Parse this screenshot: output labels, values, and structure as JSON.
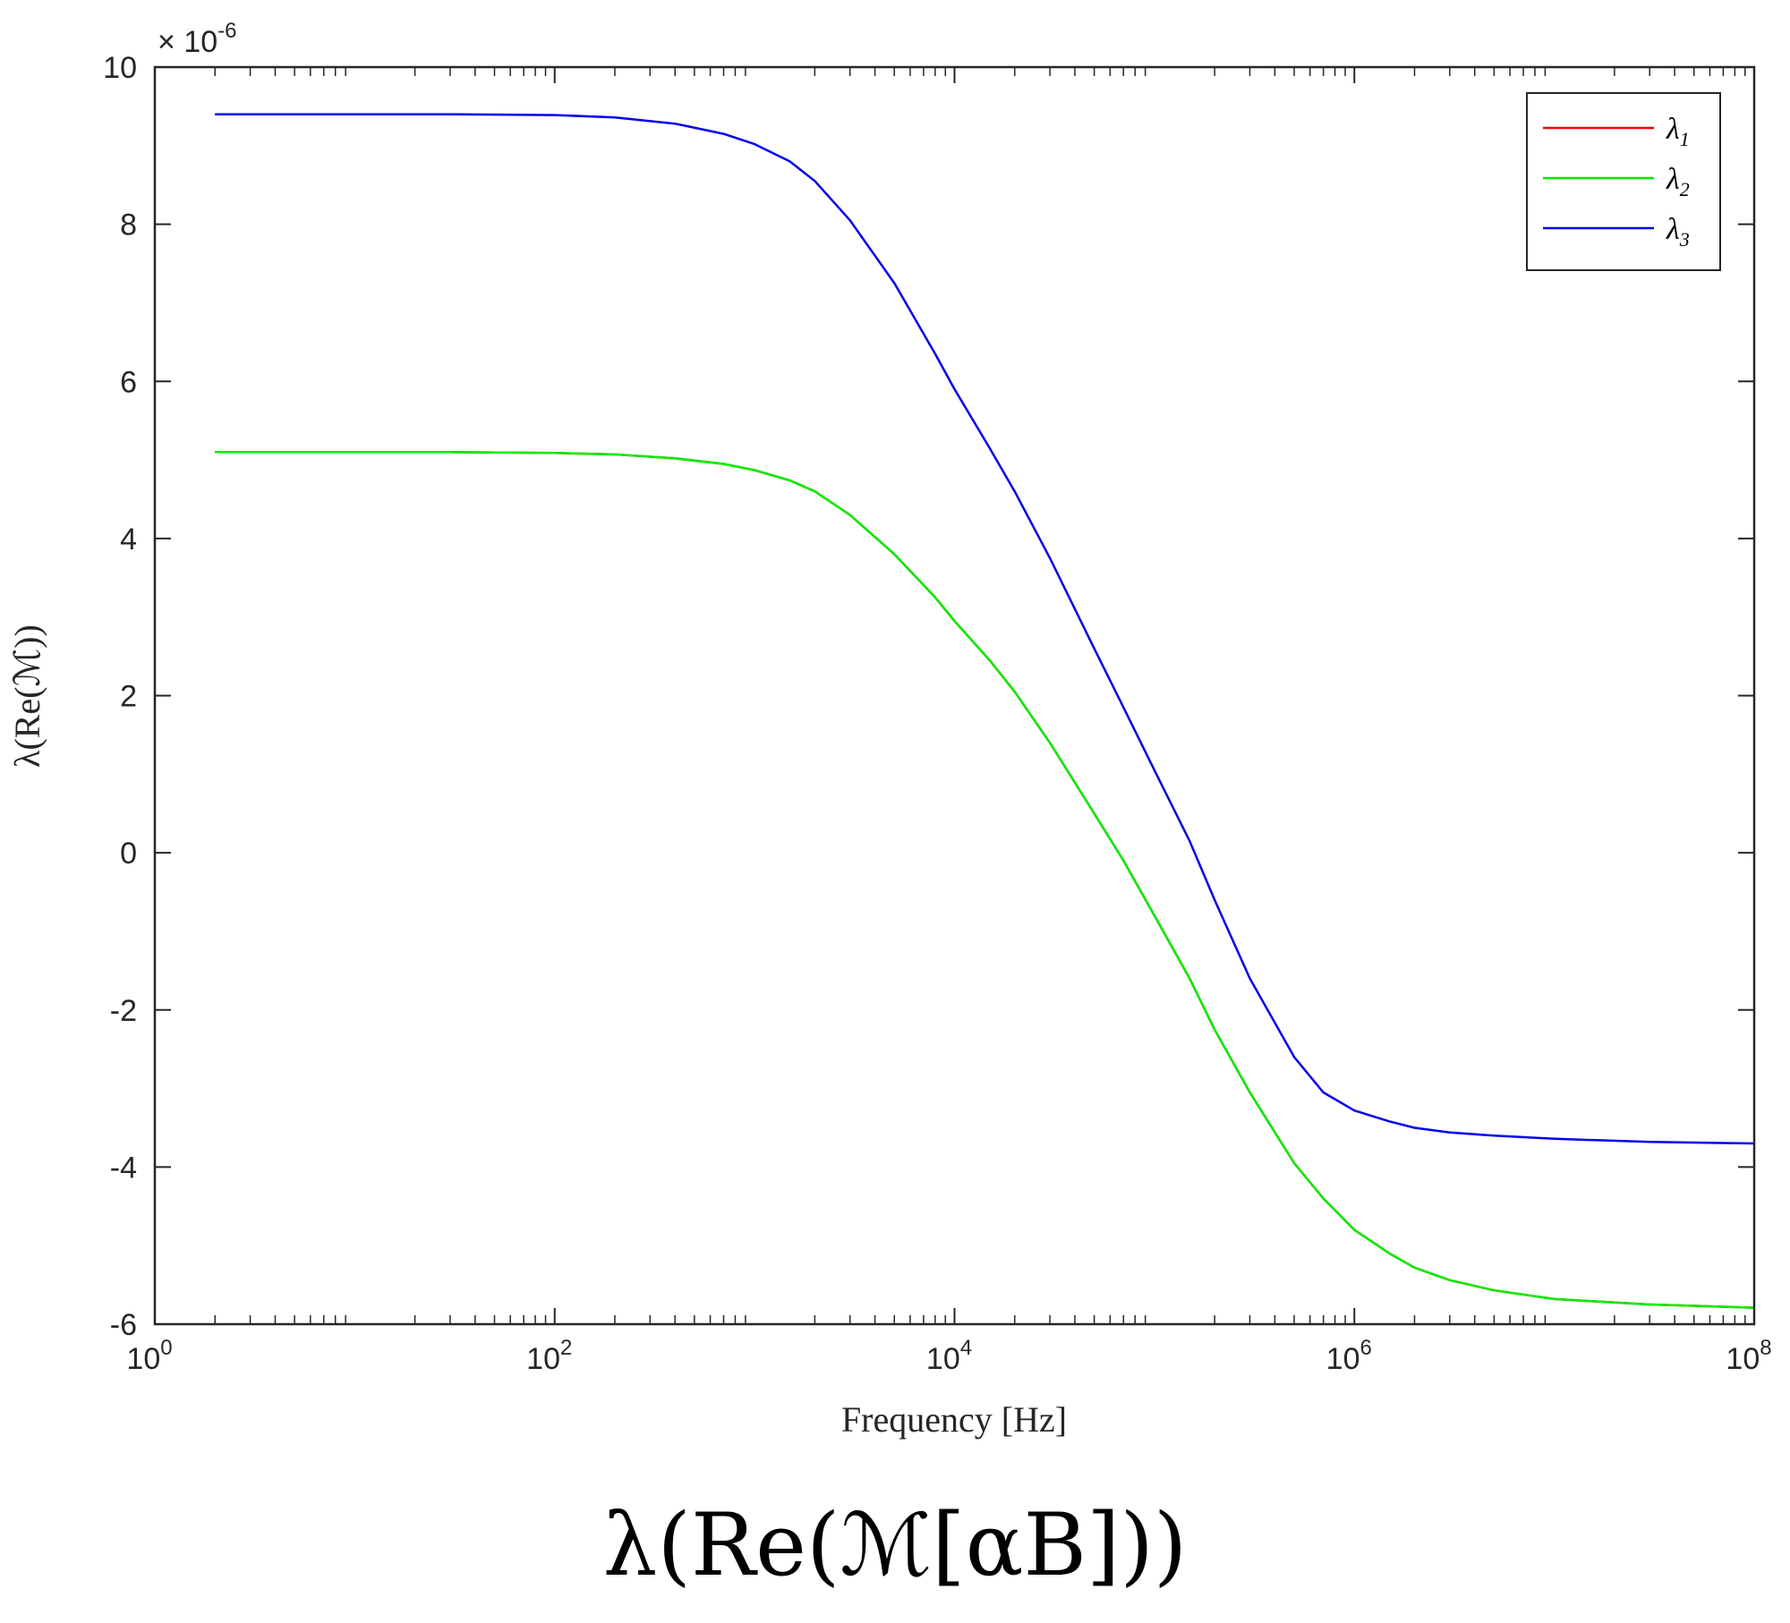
{
  "chart_data": {
    "type": "line",
    "xscale": "log",
    "xlabel": "Frequency [Hz]",
    "ylabel": "λ(Re(ℳ))",
    "caption": "λ(Re(ℳ[αB]))",
    "y_multiplier": "× 10",
    "y_multiplier_exponent": "-6",
    "xlim": [
      1,
      100000000
    ],
    "ylim": [
      -6,
      10
    ],
    "x_ticks": [
      {
        "base": "10",
        "exp": "0",
        "value": 1
      },
      {
        "base": "10",
        "exp": "2",
        "value": 100
      },
      {
        "base": "10",
        "exp": "4",
        "value": 10000
      },
      {
        "base": "10",
        "exp": "6",
        "value": 1000000
      },
      {
        "base": "10",
        "exp": "8",
        "value": 100000000
      }
    ],
    "y_ticks": [
      {
        "label": "-6",
        "value": -6
      },
      {
        "label": "-4",
        "value": -4
      },
      {
        "label": "-2",
        "value": -2
      },
      {
        "label": "0",
        "value": 0
      },
      {
        "label": "2",
        "value": 2
      },
      {
        "label": "4",
        "value": 4
      },
      {
        "label": "6",
        "value": 6
      },
      {
        "label": "8",
        "value": 8
      },
      {
        "label": "10",
        "value": 10
      }
    ],
    "legend_position": "top-right",
    "grid": false,
    "series": [
      {
        "name": "λ",
        "sub": "1",
        "color": "#ff0000",
        "x": [
          2,
          10,
          30,
          100,
          200,
          400,
          700,
          1000,
          1500,
          2000,
          3000,
          5000,
          8000,
          10000,
          15000,
          20000,
          30000,
          50000,
          70000,
          100000,
          150000,
          200000,
          300000,
          500000,
          700000,
          1000000,
          1500000,
          2000000,
          3000000,
          5000000,
          10000000,
          30000000,
          100000000
        ],
        "y": [
          5.1,
          5.1,
          5.1,
          5.09,
          5.07,
          5.02,
          4.95,
          4.87,
          4.74,
          4.6,
          4.3,
          3.8,
          3.25,
          2.95,
          2.45,
          2.05,
          1.4,
          0.5,
          -0.1,
          -0.8,
          -1.6,
          -2.25,
          -3.05,
          -3.95,
          -4.4,
          -4.8,
          -5.1,
          -5.28,
          -5.44,
          -5.57,
          -5.68,
          -5.75,
          -5.79
        ]
      },
      {
        "name": "λ",
        "sub": "2",
        "color": "#00ee00",
        "x": [
          2,
          10,
          30,
          100,
          200,
          400,
          700,
          1000,
          1500,
          2000,
          3000,
          5000,
          8000,
          10000,
          15000,
          20000,
          30000,
          50000,
          70000,
          100000,
          150000,
          200000,
          300000,
          500000,
          700000,
          1000000,
          1500000,
          2000000,
          3000000,
          5000000,
          10000000,
          30000000,
          100000000
        ],
        "y": [
          5.1,
          5.1,
          5.1,
          5.09,
          5.07,
          5.02,
          4.95,
          4.87,
          4.74,
          4.6,
          4.3,
          3.8,
          3.25,
          2.95,
          2.45,
          2.05,
          1.4,
          0.5,
          -0.1,
          -0.8,
          -1.6,
          -2.25,
          -3.05,
          -3.95,
          -4.4,
          -4.8,
          -5.1,
          -5.28,
          -5.44,
          -5.57,
          -5.68,
          -5.75,
          -5.79
        ]
      },
      {
        "name": "λ",
        "sub": "3",
        "color": "#0000ee",
        "x": [
          2,
          10,
          30,
          100,
          200,
          400,
          700,
          1000,
          1500,
          2000,
          3000,
          5000,
          8000,
          10000,
          15000,
          20000,
          30000,
          50000,
          70000,
          100000,
          150000,
          200000,
          300000,
          500000,
          700000,
          1000000,
          1500000,
          2000000,
          3000000,
          5000000,
          10000000,
          30000000,
          100000000
        ],
        "y": [
          9.4,
          9.4,
          9.4,
          9.39,
          9.36,
          9.28,
          9.15,
          9.02,
          8.8,
          8.55,
          8.05,
          7.25,
          6.35,
          5.9,
          5.15,
          4.6,
          3.75,
          2.6,
          1.85,
          1.05,
          0.15,
          -0.6,
          -1.6,
          -2.6,
          -3.05,
          -3.28,
          -3.42,
          -3.5,
          -3.56,
          -3.6,
          -3.64,
          -3.68,
          -3.7
        ]
      }
    ]
  }
}
